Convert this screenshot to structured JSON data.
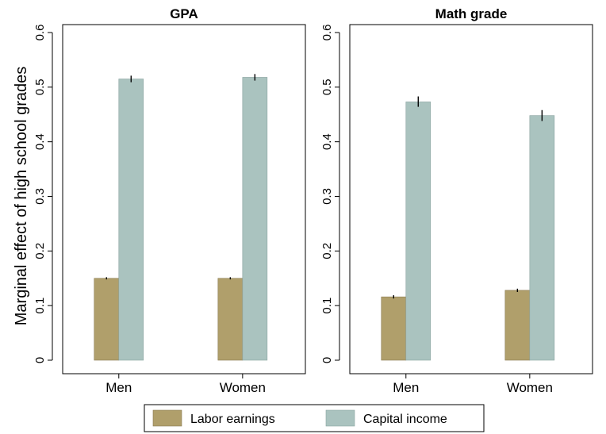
{
  "chart_data": {
    "type": "bar",
    "ylabel": "Marginal effect of high school grades",
    "ylim": [
      0,
      0.6
    ],
    "yticks": [
      "0",
      "0.1",
      "0.2",
      "0.3",
      "0.4",
      "0.5",
      "0.6"
    ],
    "categories": [
      "Men",
      "Women"
    ],
    "legend": {
      "position": "bottom",
      "items": [
        {
          "label": "Labor earnings",
          "color": "#b09f6b"
        },
        {
          "label": "Capital income",
          "color": "#aac3bf"
        }
      ]
    },
    "panels": [
      {
        "title": "GPA",
        "series": [
          {
            "name": "Labor earnings",
            "color": "#b09f6b",
            "values": [
              0.15,
              0.15
            ],
            "ci": [
              [
                0.148,
                0.152
              ],
              [
                0.148,
                0.152
              ]
            ]
          },
          {
            "name": "Capital income",
            "color": "#aac3bf",
            "values": [
              0.515,
              0.518
            ],
            "ci": [
              [
                0.509,
                0.521
              ],
              [
                0.512,
                0.524
              ]
            ]
          }
        ]
      },
      {
        "title": "Math grade",
        "series": [
          {
            "name": "Labor earnings",
            "color": "#b09f6b",
            "values": [
              0.116,
              0.128
            ],
            "ci": [
              [
                0.113,
                0.119
              ],
              [
                0.125,
                0.131
              ]
            ]
          },
          {
            "name": "Capital income",
            "color": "#aac3bf",
            "values": [
              0.473,
              0.448
            ],
            "ci": [
              [
                0.464,
                0.483
              ],
              [
                0.438,
                0.458
              ]
            ]
          }
        ]
      }
    ]
  }
}
